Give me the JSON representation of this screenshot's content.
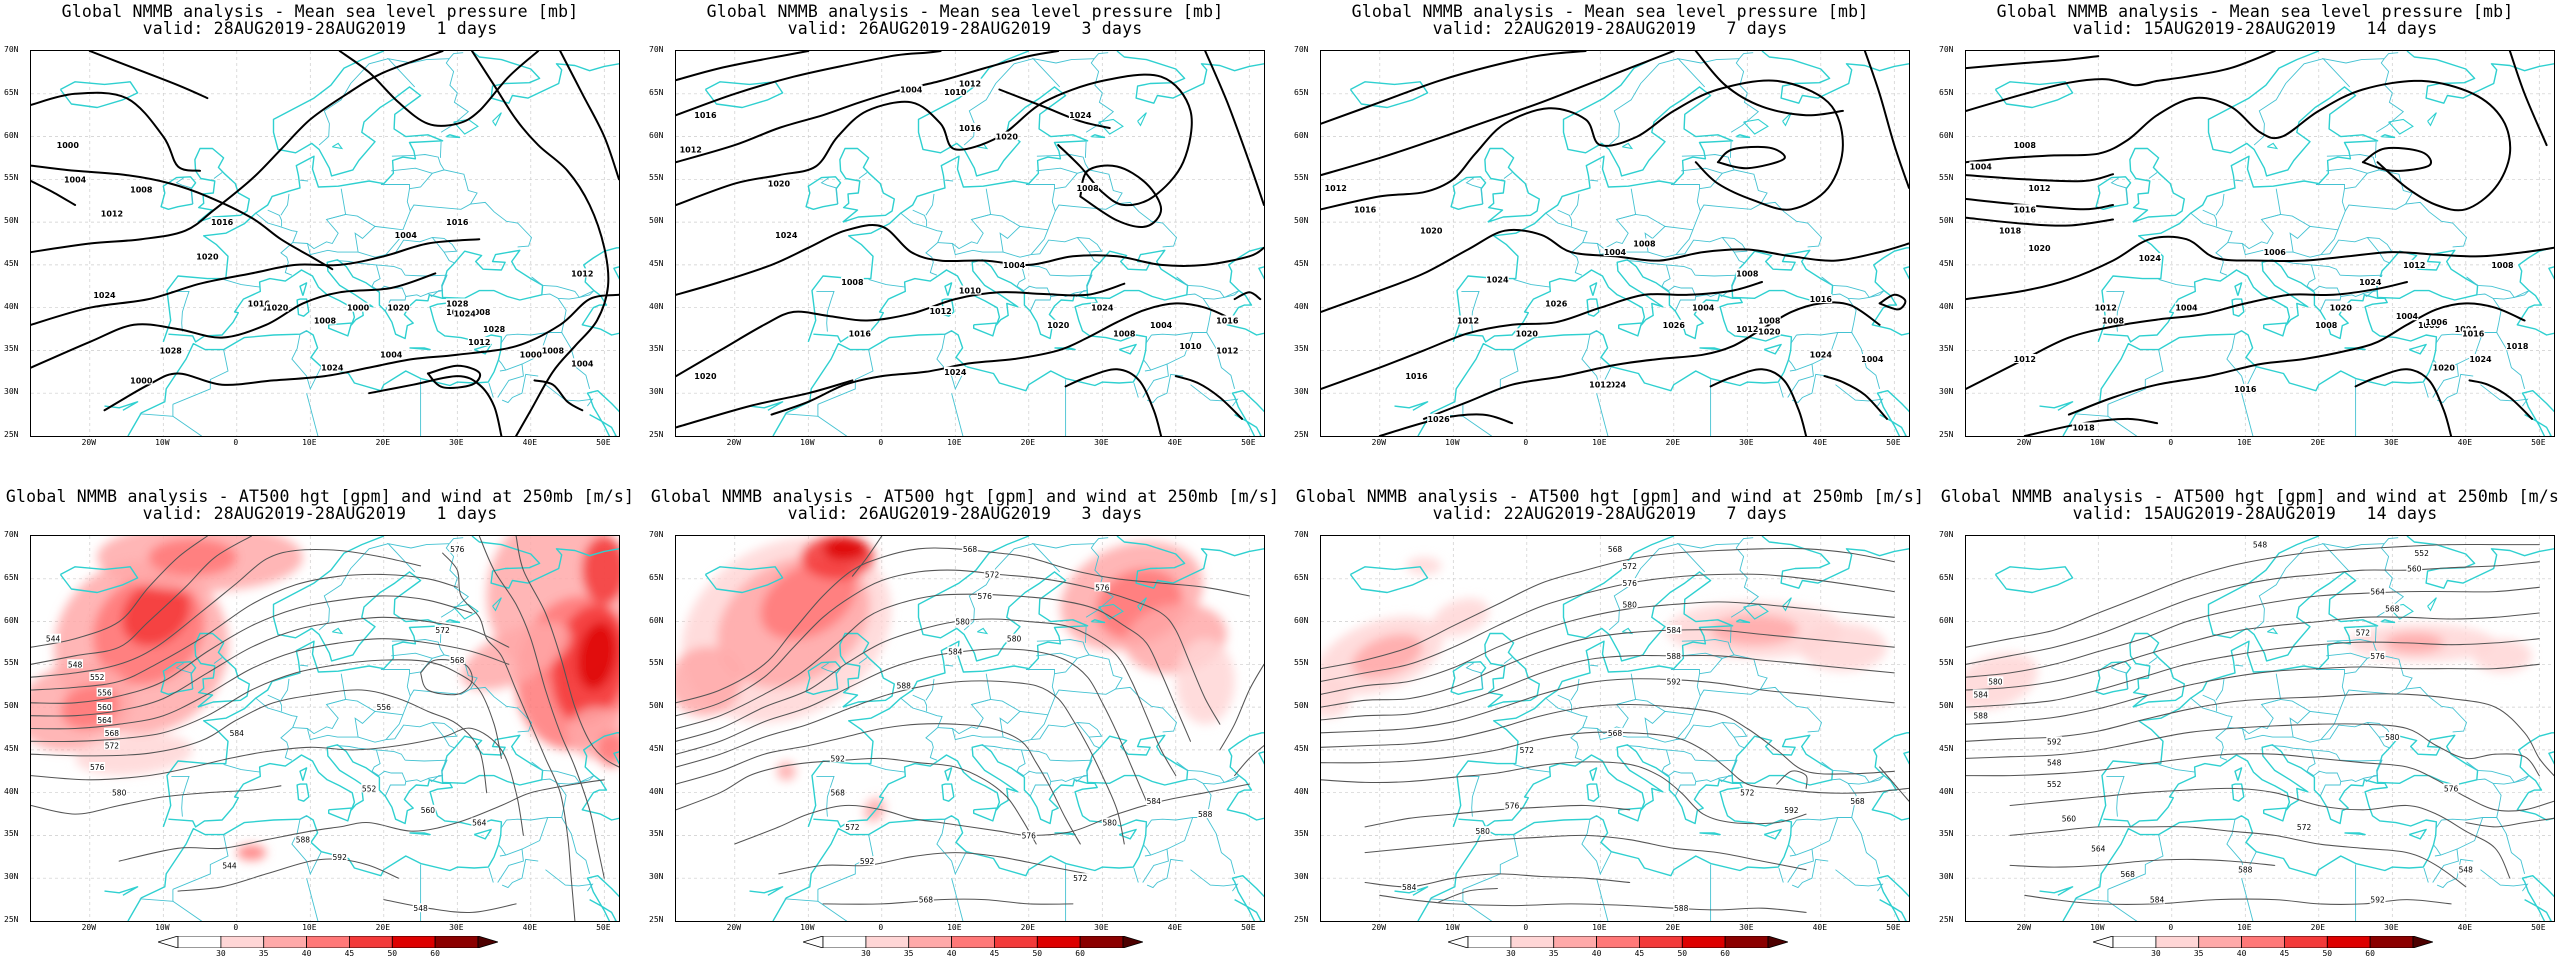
{
  "colors": {
    "coast": "#2fd0d0",
    "border": "#44c2d2",
    "contour_mslp": "#000000",
    "contour_hgt": "#555555",
    "wind_fill": [
      "#ffffff",
      "#ffd6d6",
      "#ffa9a9",
      "#ff7878",
      "#f33a3a",
      "#dd0000",
      "#8b0000"
    ]
  },
  "axes": {
    "lat_labels": [
      "70N",
      "65N",
      "60N",
      "55N",
      "50N",
      "45N",
      "40N",
      "35N",
      "30N",
      "25N"
    ],
    "lon_labels": [
      "20W",
      "10W",
      "0",
      "10E",
      "20E",
      "30E",
      "40E",
      "50E"
    ]
  },
  "colorbar": {
    "ticks": [
      "30",
      "35",
      "40",
      "45",
      "50",
      "60"
    ]
  },
  "panels": [
    {
      "type": "mslp",
      "title1": "Global NMMB analysis - Mean sea level pressure [mb]",
      "title2": "valid: 28AUG2019-28AUG2019   1 days",
      "labels": [
        "1000",
        "1004",
        "1008",
        "1012",
        "1016",
        "1020",
        "1024",
        "1028"
      ]
    },
    {
      "type": "mslp",
      "title1": "Global NMMB analysis - Mean sea level pressure [mb]",
      "title2": "valid: 26AUG2019-28AUG2019   3 days",
      "labels": [
        "1012",
        "1016",
        "1020",
        "1024",
        "1008",
        "1004",
        "1010"
      ]
    },
    {
      "type": "mslp",
      "title1": "Global NMMB analysis - Mean sea level pressure [mb]",
      "title2": "valid: 22AUG2019-28AUG2019   7 days",
      "labels": [
        "1012",
        "1016",
        "1020",
        "1024",
        "1008",
        "1004",
        "1026"
      ]
    },
    {
      "type": "mslp",
      "title1": "Global NMMB analysis - Mean sea level pressure [mb]",
      "title2": "valid: 15AUG2019-28AUG2019   14 days",
      "labels": [
        "1004",
        "1008",
        "1012",
        "1016",
        "1018",
        "1020",
        "1024",
        "1006"
      ]
    },
    {
      "type": "hgt",
      "title1": "Global NMMB analysis - AT500 hgt [gpm] and wind at 250mb [m/s]",
      "title2": "valid: 28AUG2019-28AUG2019   1 days",
      "labels": [
        "544",
        "548",
        "552",
        "556",
        "560",
        "564",
        "568",
        "572",
        "576",
        "580",
        "584",
        "588",
        "592"
      ]
    },
    {
      "type": "hgt",
      "title1": "Global NMMB analysis - AT500 hgt [gpm] and wind at 250mb [m/s]",
      "title2": "valid: 26AUG2019-28AUG2019   3 days",
      "labels": [
        "568",
        "572",
        "576",
        "580",
        "584",
        "588",
        "592"
      ]
    },
    {
      "type": "hgt",
      "title1": "Global NMMB analysis - AT500 hgt [gpm] and wind at 250mb [m/s]",
      "title2": "valid: 22AUG2019-28AUG2019   7 days",
      "labels": [
        "568",
        "572",
        "576",
        "580",
        "584",
        "588",
        "592"
      ]
    },
    {
      "type": "hgt",
      "title1": "Global NMMB analysis - AT500 hgt [gpm] and wind at 250mb [m/s]",
      "title2": "valid: 15AUG2019-28AUG2019   14 days",
      "labels": [
        "548",
        "552",
        "560",
        "564",
        "568",
        "572",
        "576",
        "580",
        "584",
        "588",
        "592"
      ]
    }
  ]
}
